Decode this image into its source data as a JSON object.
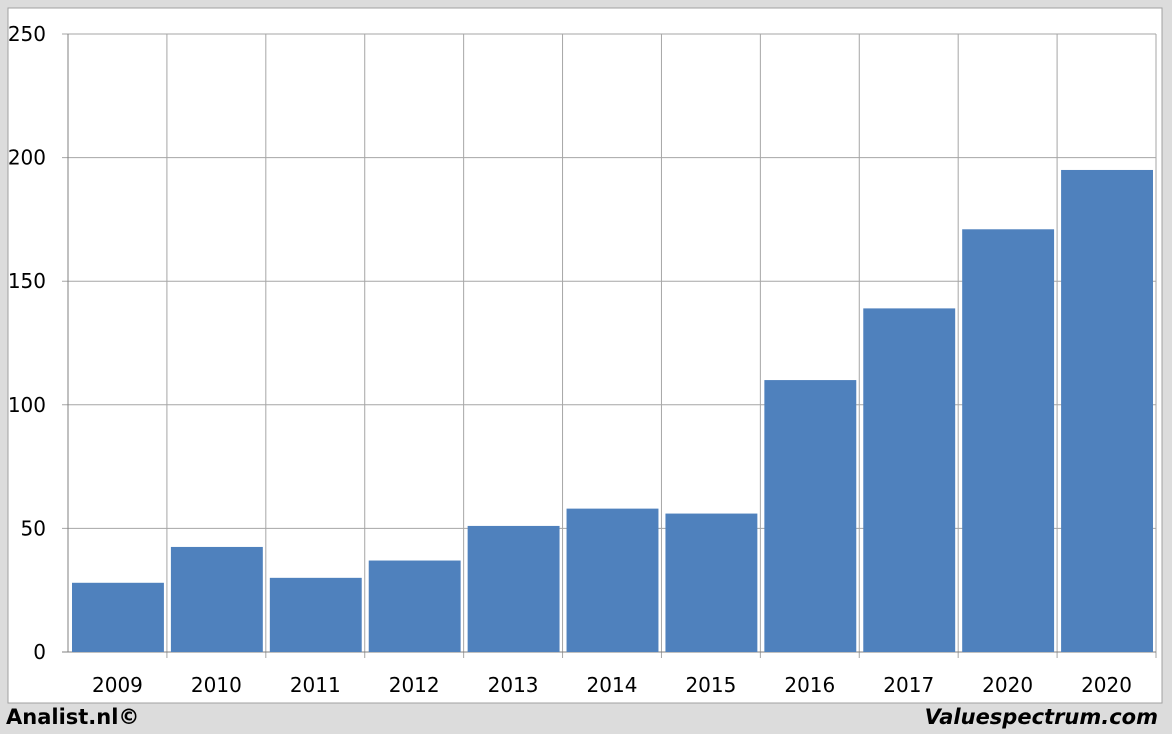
{
  "chart_data": {
    "type": "bar",
    "categories": [
      "2009",
      "2010",
      "2011",
      "2012",
      "2013",
      "2014",
      "2015",
      "2016",
      "2017",
      "2020",
      "2020"
    ],
    "values": [
      28,
      42.5,
      30,
      37,
      51,
      58,
      56,
      110,
      139,
      171,
      195
    ],
    "color": "#4f81bd",
    "ylim": [
      0,
      250
    ],
    "yticks": [
      0,
      50,
      100,
      150,
      200,
      250
    ],
    "grid": true
  },
  "footer": {
    "left": "Analist.nl©",
    "right": "Valuespectrum.com"
  }
}
